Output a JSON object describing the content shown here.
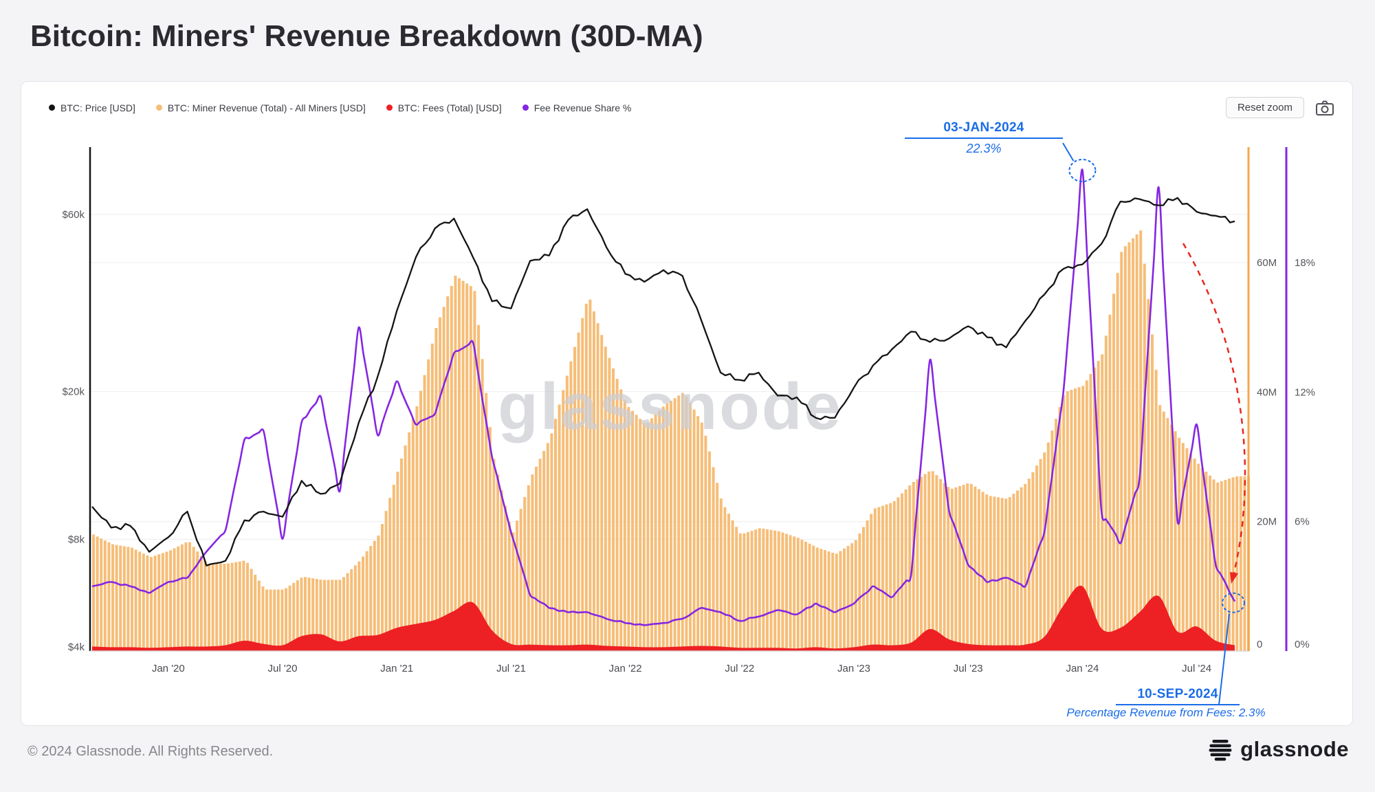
{
  "page": {
    "title": "Bitcoin: Miners' Revenue Breakdown (30D-MA)",
    "watermark": "glassnode",
    "footer_copyright": "© 2024 Glassnode. All Rights Reserved.",
    "brand_logo_text": "glassnode",
    "background_color": "#f4f4f6",
    "annotation_blue": "#1a6ce8",
    "annotation_red": "#e8281e"
  },
  "controls": {
    "reset_zoom_label": "Reset zoom",
    "camera_icon": "camera-icon"
  },
  "chart_data": {
    "type": "mixed-timeseries",
    "title": "Bitcoin: Miners' Revenue Breakdown (30D-MA)",
    "x_monthly_categories": [
      "2019-09",
      "2019-10",
      "2019-11",
      "2019-12",
      "2020-01",
      "2020-02",
      "2020-03",
      "2020-04",
      "2020-05",
      "2020-06",
      "2020-07",
      "2020-08",
      "2020-09",
      "2020-10",
      "2020-11",
      "2020-12",
      "2021-01",
      "2021-02",
      "2021-03",
      "2021-04",
      "2021-05",
      "2021-06",
      "2021-07",
      "2021-08",
      "2021-09",
      "2021-10",
      "2021-11",
      "2021-12",
      "2022-01",
      "2022-02",
      "2022-03",
      "2022-04",
      "2022-05",
      "2022-06",
      "2022-07",
      "2022-08",
      "2022-09",
      "2022-10",
      "2022-11",
      "2022-12",
      "2023-01",
      "2023-02",
      "2023-03",
      "2023-04",
      "2023-05",
      "2023-06",
      "2023-07",
      "2023-08",
      "2023-09",
      "2023-10",
      "2023-11",
      "2023-12",
      "2024-01",
      "2024-02",
      "2024-03",
      "2024-04",
      "2024-05",
      "2024-06",
      "2024-07",
      "2024-08",
      "2024-09"
    ],
    "x_ticks": {
      "labels": [
        "Jan '20",
        "Jul '20",
        "Jan '21",
        "Jul '21",
        "Jan '22",
        "Jul '22",
        "Jan '23",
        "Jul '23",
        "Jan '24",
        "Jul '24"
      ],
      "month_index": [
        4,
        10,
        16,
        22,
        28,
        34,
        40,
        46,
        52,
        58
      ]
    },
    "axes": {
      "left_price_usd": {
        "scale": "log",
        "tick_labels": [
          "$60k",
          "$20k",
          "$8k",
          "$4k"
        ],
        "tick_values": [
          60000,
          20000,
          8000,
          4000
        ],
        "axis_color": "#141414"
      },
      "right_revenue_usd_per_day": {
        "scale": "linear",
        "tick_labels": [
          "60M",
          "40M",
          "20M",
          "0"
        ],
        "tick_values_millions": [
          60,
          40,
          20,
          0
        ],
        "axis_color": "#f4a84d"
      },
      "right_fee_share_percent": {
        "scale": "linear",
        "tick_labels": [
          "18%",
          "12%",
          "6%",
          "0%"
        ],
        "tick_values": [
          18,
          12,
          6,
          0
        ],
        "axis_color": "#8526e3"
      }
    },
    "series": [
      {
        "name": "BTC: Price [USD]",
        "type": "line",
        "axis": "left_price_usd",
        "color": "#141414",
        "values": [
          9800,
          8600,
          8700,
          7400,
          8100,
          9500,
          6800,
          7000,
          9000,
          9500,
          9200,
          11500,
          10600,
          11300,
          16500,
          22000,
          33000,
          46000,
          55000,
          58500,
          46000,
          35000,
          33500,
          45000,
          46500,
          58000,
          62000,
          49000,
          41500,
          39500,
          42500,
          41000,
          31000,
          22500,
          21500,
          22500,
          19500,
          19300,
          17000,
          17000,
          20500,
          23500,
          26000,
          29000,
          27200,
          27800,
          30000,
          28000,
          26300,
          31000,
          36500,
          42800,
          44000,
          50000,
          65000,
          66000,
          63500,
          66500,
          61000,
          59500,
          57500
        ]
      },
      {
        "name": "BTC: Miner Revenue (Total) - All Miners [USD]",
        "type": "area",
        "axis": "right_revenue_usd_per_day",
        "unit": "USD millions per day",
        "color": "#f6bd77",
        "values": [
          18,
          16.5,
          16,
          14.5,
          15.5,
          17,
          13.5,
          13.5,
          14,
          9.5,
          9.5,
          11.5,
          11,
          11,
          14,
          18,
          28,
          38,
          50,
          58,
          56,
          30,
          18,
          27,
          33,
          44,
          55,
          46,
          38,
          35,
          38,
          40,
          35,
          23,
          18,
          19,
          18.5,
          17.5,
          16,
          15,
          17,
          22,
          23,
          26,
          28,
          25,
          26,
          24,
          23.5,
          26,
          31,
          40,
          41,
          46,
          62,
          65,
          38,
          33,
          29,
          26,
          27
        ]
      },
      {
        "name": "BTC: Fees (Total) [USD]",
        "type": "area",
        "axis": "right_revenue_usd_per_day",
        "unit": "USD millions per day",
        "color": "#ed2024",
        "values": [
          0.7,
          0.6,
          0.6,
          0.5,
          0.6,
          0.7,
          0.7,
          0.9,
          1.6,
          1.1,
          0.9,
          2.3,
          2.6,
          1.5,
          2.3,
          2.5,
          3.6,
          4.2,
          4.8,
          6.2,
          7.5,
          3.2,
          1.1,
          1,
          0.9,
          0.9,
          1,
          0.8,
          0.7,
          0.6,
          0.6,
          0.7,
          0.8,
          0.7,
          0.5,
          0.5,
          0.5,
          0.4,
          0.6,
          0.4,
          0.6,
          1,
          0.9,
          1.3,
          3.4,
          1.8,
          1.1,
          0.9,
          0.9,
          1,
          2.2,
          7,
          10,
          3.5,
          3.6,
          6,
          8.5,
          3,
          3.8,
          1.6,
          0.9
        ]
      },
      {
        "name": "Fee Revenue Share %",
        "type": "line",
        "axis": "right_fee_share_percent",
        "unit": "%",
        "color": "#8526e3",
        "values": [
          3,
          3.2,
          3,
          2.7,
          3.2,
          3.4,
          4.6,
          5.6,
          9.8,
          10.2,
          5.2,
          10.6,
          11.8,
          7.4,
          15,
          10,
          12.5,
          10.5,
          11,
          13.8,
          14.3,
          9,
          5.5,
          2.6,
          2,
          1.8,
          1.8,
          1.5,
          1.3,
          1.2,
          1.3,
          1.5,
          2,
          1.8,
          1.4,
          1.6,
          1.9,
          1.7,
          2.2,
          1.8,
          2.2,
          3,
          2.5,
          3.5,
          13.5,
          6.5,
          4,
          3.2,
          3.4,
          3,
          5.5,
          12,
          22.3,
          6.5,
          5,
          8,
          21.5,
          6,
          10.5,
          4,
          2.3
        ]
      }
    ],
    "annotations": [
      {
        "id": "fee-share-peak",
        "date_label": "03-JAN-2024",
        "value_label": "22.3%",
        "series": "Fee Revenue Share %",
        "month": "2024-01",
        "point_index": 52,
        "color": "#1a6ce8"
      },
      {
        "id": "fee-share-low",
        "date_label": "10-SEP-2024",
        "note": "Percentage Revenue from Fees: 2.3%",
        "value_percent": 2.3,
        "series": "Fee Revenue Share %",
        "month": "2024-09",
        "point_index": 60,
        "color": "#1a6ce8"
      },
      {
        "id": "decline-arrow",
        "type": "dashed-arrow",
        "color": "#e8281e",
        "from_month": "2024-05",
        "to_month": "2024-09"
      }
    ]
  }
}
